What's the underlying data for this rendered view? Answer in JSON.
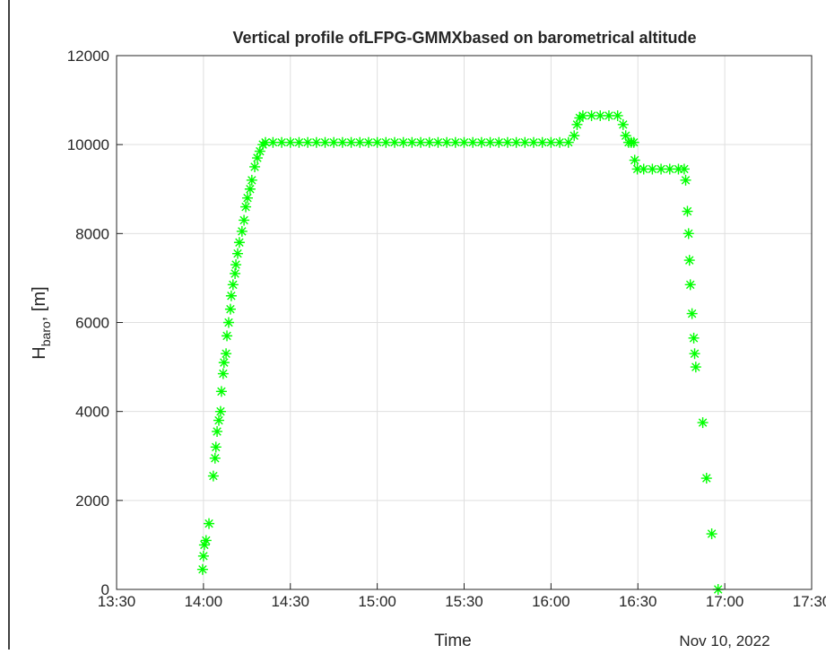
{
  "chart_data": {
    "type": "scatter",
    "title": "Vertical profile ofLFPG-GMMXbased on barometrical altitude",
    "xlabel": "Time",
    "ylabel": {
      "main": "H",
      "sub": "baro",
      "rest": ", [m]"
    },
    "date_label": "Nov 10, 2022",
    "color": "#00ff00",
    "marker": "asterisk",
    "grid": true,
    "xlim": [
      810,
      1050
    ],
    "xticks": [
      {
        "value": 810,
        "label": "13:30"
      },
      {
        "value": 840,
        "label": "14:00"
      },
      {
        "value": 870,
        "label": "14:30"
      },
      {
        "value": 900,
        "label": "15:00"
      },
      {
        "value": 930,
        "label": "15:30"
      },
      {
        "value": 960,
        "label": "16:00"
      },
      {
        "value": 990,
        "label": "16:30"
      },
      {
        "value": 1020,
        "label": "17:00"
      },
      {
        "value": 1050,
        "label": "17:30"
      }
    ],
    "ylim": [
      0,
      12000
    ],
    "yticks": [
      0,
      2000,
      4000,
      6000,
      8000,
      10000,
      12000
    ],
    "x": [
      839.7,
      840,
      840.3,
      840.9,
      841.9,
      843.4,
      844.0,
      844.3,
      844.7,
      845.3,
      845.9,
      846.2,
      846.8,
      847.1,
      847.8,
      848.1,
      848.7,
      849.3,
      849.6,
      850.2,
      850.9,
      851.2,
      851.8,
      852.4,
      853.3,
      854.0,
      854.6,
      855.2,
      856.1,
      856.7,
      857.7,
      858.6,
      859.5,
      860.5,
      861.4,
      864,
      867,
      870,
      873,
      876,
      879,
      882,
      885,
      888,
      891,
      894,
      897,
      900,
      903,
      906,
      909,
      912,
      915,
      918,
      921,
      924,
      927,
      930,
      933,
      936,
      939,
      942,
      945,
      948,
      951,
      954,
      957,
      960,
      963,
      966,
      968,
      969,
      969.9,
      971,
      974,
      977,
      980,
      983,
      984.9,
      985.8,
      986.8,
      987.7,
      988.6,
      988.9,
      989.8,
      992,
      995,
      998,
      1001,
      1004,
      1006,
      1006.5,
      1007.1,
      1007.5,
      1007.8,
      1008.1,
      1008.7,
      1009.3,
      1009.6,
      1010,
      1012.4,
      1013.7,
      1015.5,
      1017.7
    ],
    "values": [
      450,
      750,
      1000,
      1100,
      1480,
      2550,
      2950,
      3200,
      3550,
      3800,
      4000,
      4450,
      4850,
      5100,
      5300,
      5700,
      6000,
      6300,
      6600,
      6850,
      7100,
      7300,
      7550,
      7800,
      8050,
      8300,
      8600,
      8800,
      9000,
      9200,
      9500,
      9700,
      9850,
      10000,
      10050,
      10050,
      10050,
      10050,
      10050,
      10050,
      10050,
      10050,
      10050,
      10050,
      10050,
      10050,
      10050,
      10050,
      10050,
      10050,
      10050,
      10050,
      10050,
      10050,
      10050,
      10050,
      10050,
      10050,
      10050,
      10050,
      10050,
      10050,
      10050,
      10050,
      10050,
      10050,
      10050,
      10050,
      10050,
      10050,
      10200,
      10450,
      10600,
      10650,
      10650,
      10650,
      10650,
      10650,
      10450,
      10200,
      10050,
      10050,
      10050,
      9650,
      9450,
      9450,
      9450,
      9450,
      9450,
      9450,
      9450,
      9200,
      8500,
      8000,
      7400,
      6850,
      6200,
      5650,
      5300,
      5000,
      3750,
      2500,
      1250,
      0
    ]
  }
}
